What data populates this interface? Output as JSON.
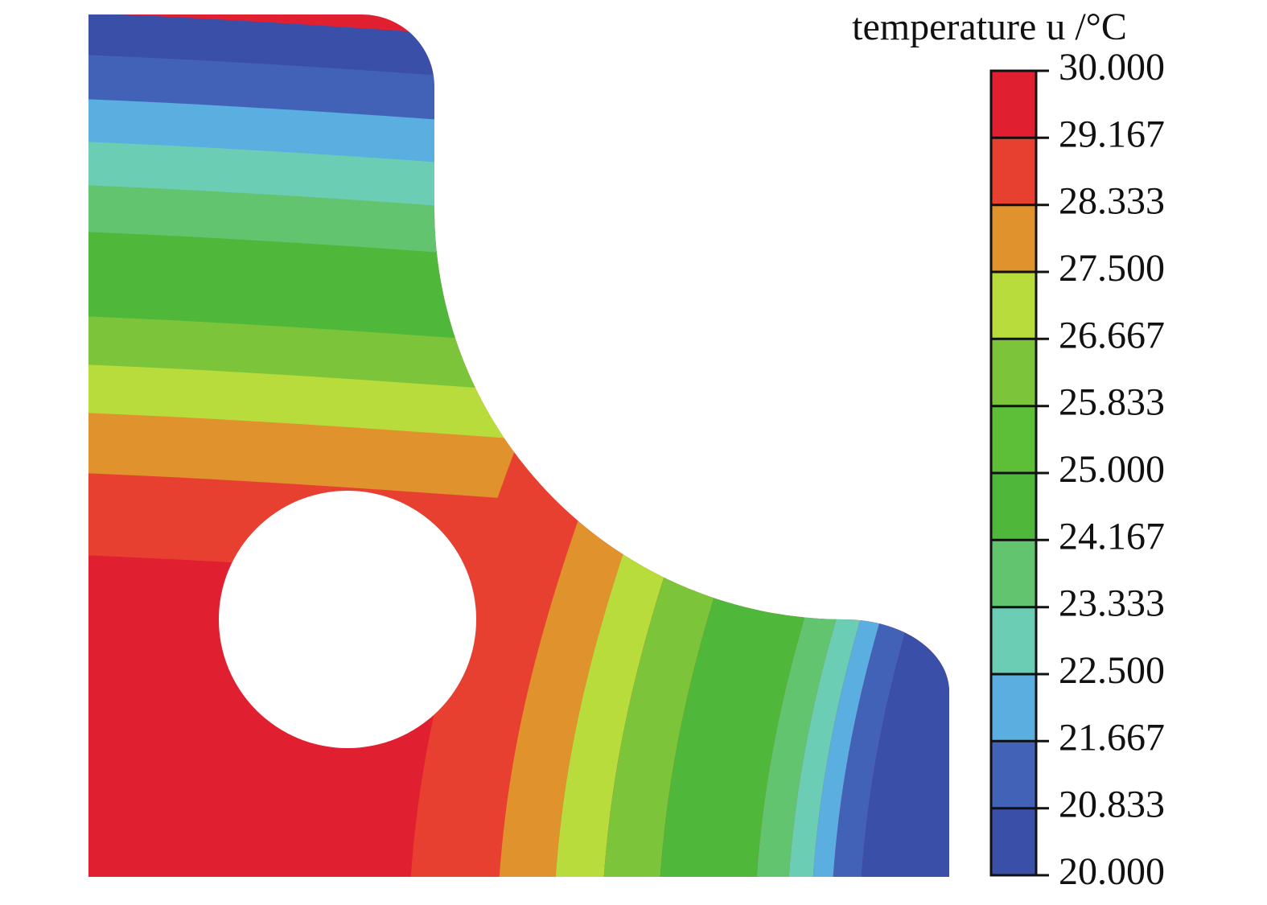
{
  "chart_data": {
    "type": "contour",
    "colorbar_title": "temperature u /°C",
    "ylim": [
      20,
      30
    ],
    "yticks": [
      {
        "value": 20,
        "label": "20.000"
      },
      20.833,
      21.667,
      {
        "value": 22.5,
        "label": "22.500"
      },
      23.333,
      24.167,
      {
        "value": 25,
        "label": "25.000"
      },
      25.833,
      26.667,
      {
        "value": 27.5,
        "label": "27.500"
      },
      28.333,
      29.167,
      {
        "value": 30,
        "label": "30.000"
      }
    ],
    "colors": [
      "#3a4fa8",
      "#4262b8",
      "#5aaee0",
      "#6ccdb5",
      "#62c46e",
      "#4fb83a",
      "#5dbe38",
      "#7cc43a",
      "#b8dc3c",
      "#e0922c",
      "#e84030",
      "#e02030"
    ]
  }
}
